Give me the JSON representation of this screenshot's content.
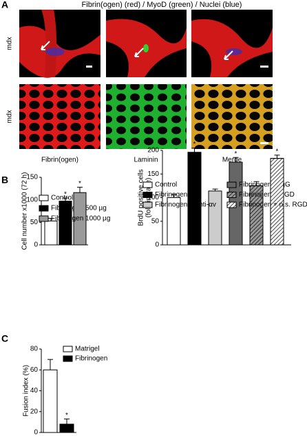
{
  "panel_a": {
    "label": "A",
    "title": "Fibrin(ogen) (red) / MyoD (green) / Nuclei (blue)",
    "row_labels": [
      "mdx",
      "mdx"
    ],
    "captions": [
      "Fibrin(ogen)",
      "Laminin",
      "Merge"
    ]
  },
  "panel_b": {
    "label": "B"
  },
  "panel_c": {
    "label": "C"
  },
  "chart_data": [
    {
      "type": "bar",
      "ylabel": [
        "Cell number x1000 (72 h)"
      ],
      "categories": [
        "Control",
        "Fibrinogen 500 µg",
        "Fibrinogen 1000 µg"
      ],
      "values": [
        53,
        97,
        116
      ],
      "errors": [
        6,
        7,
        12
      ],
      "colors": [
        "#ffffff",
        "#000000",
        "#9a9a9a"
      ],
      "hatch": [
        false,
        false,
        false
      ],
      "markers": [
        null,
        "*",
        "*"
      ],
      "ylim": [
        0,
        150
      ],
      "yticks": [
        0,
        50,
        100,
        150
      ]
    },
    {
      "type": "bar",
      "ylabel": [
        "BrdU positive cells",
        "(fold incrase)"
      ],
      "categories": [
        "Control",
        "Fibrinogen",
        "Fibrinogen + anti-αv",
        "Fibrinogen + IgG",
        "Fibrinogen + RGD",
        "Fibrinogen + n.s. RGD"
      ],
      "values": [
        100,
        196,
        114,
        175,
        125,
        183
      ],
      "errors": [
        7,
        9,
        4,
        10,
        9,
        7
      ],
      "colors": [
        "#ffffff",
        "#000000",
        "#cccccc",
        "#666666",
        "#999999",
        "#ffffff"
      ],
      "hatch": [
        false,
        false,
        false,
        false,
        true,
        true
      ],
      "markers": [
        null,
        "*",
        null,
        "*",
        null,
        "*"
      ],
      "ylim": [
        0,
        200
      ],
      "yticks": [
        0,
        50,
        100,
        150,
        200
      ]
    },
    {
      "type": "bar",
      "ylabel": [
        "Fusion index (%)"
      ],
      "categories": [
        "Matrigel",
        "Fibrinogen"
      ],
      "values": [
        60,
        8
      ],
      "errors": [
        10,
        5
      ],
      "colors": [
        "#ffffff",
        "#000000"
      ],
      "hatch": [
        false,
        false
      ],
      "markers": [
        null,
        "*"
      ],
      "ylim": [
        0,
        80
      ],
      "yticks": [
        0,
        20,
        40,
        60,
        80
      ]
    }
  ]
}
